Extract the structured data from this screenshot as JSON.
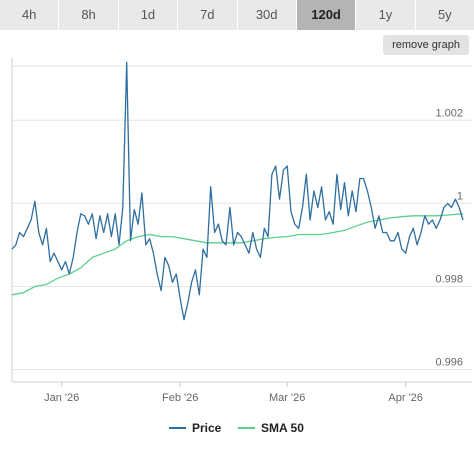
{
  "tabs": [
    {
      "label": "4h",
      "active": false
    },
    {
      "label": "8h",
      "active": false
    },
    {
      "label": "1d",
      "active": false
    },
    {
      "label": "7d",
      "active": false
    },
    {
      "label": "30d",
      "active": false
    },
    {
      "label": "120d",
      "active": true
    },
    {
      "label": "1y",
      "active": false
    },
    {
      "label": "5y",
      "active": false
    }
  ],
  "remove_graph_label": "remove graph",
  "colors": {
    "price": "#2f6f9f",
    "sma": "#5bd08b",
    "grid": "#e6e6e6",
    "axis_text": "#666666"
  },
  "chart_data": {
    "type": "line",
    "title": "",
    "xlabel": "",
    "ylabel": "",
    "ylim": [
      0.9957,
      1.0035
    ],
    "yticks": [
      0.996,
      0.998,
      1,
      1.002
    ],
    "ytick_labels": [
      "0.996",
      "0.998",
      "1",
      "1.002"
    ],
    "x_range": [
      "2025-12-19",
      "2026-04-16"
    ],
    "xticks": [
      {
        "date": "2026-01-01",
        "label": "Jan '26"
      },
      {
        "date": "2026-02-01",
        "label": "Feb '26"
      },
      {
        "date": "2026-03-01",
        "label": "Mar '26"
      },
      {
        "date": "2026-04-01",
        "label": "Apr '26"
      }
    ],
    "series": [
      {
        "name": "Price",
        "color": "#2f6f9f",
        "points": [
          [
            "2025-12-19",
            0.9989
          ],
          [
            "2025-12-20",
            0.999
          ],
          [
            "2025-12-21",
            0.9993
          ],
          [
            "2025-12-22",
            0.9992
          ],
          [
            "2025-12-23",
            0.9994
          ],
          [
            "2025-12-24",
            0.9996
          ],
          [
            "2025-12-25",
            1.00005
          ],
          [
            "2025-12-26",
            0.9993
          ],
          [
            "2025-12-27",
            0.999
          ],
          [
            "2025-12-28",
            0.9994
          ],
          [
            "2025-12-29",
            0.9986
          ],
          [
            "2025-12-30",
            0.9988
          ],
          [
            "2025-12-31",
            0.9986
          ],
          [
            "2026-01-01",
            0.9984
          ],
          [
            "2026-01-02",
            0.9986
          ],
          [
            "2026-01-03",
            0.9983
          ],
          [
            "2026-01-04",
            0.9987
          ],
          [
            "2026-01-05",
            0.9993
          ],
          [
            "2026-01-06",
            0.99975
          ],
          [
            "2026-01-07",
            0.9997
          ],
          [
            "2026-01-08",
            0.9995
          ],
          [
            "2026-01-09",
            0.99975
          ],
          [
            "2026-01-10",
            0.99915
          ],
          [
            "2026-01-11",
            0.9997
          ],
          [
            "2026-01-12",
            0.9993
          ],
          [
            "2026-01-13",
            0.99975
          ],
          [
            "2026-01-14",
            0.9992
          ],
          [
            "2026-01-15",
            0.99975
          ],
          [
            "2026-01-16",
            0.999
          ],
          [
            "2026-01-17",
            0.9999
          ],
          [
            "2026-01-18",
            1.0034
          ],
          [
            "2026-01-19",
            0.9991
          ],
          [
            "2026-01-20",
            0.99985
          ],
          [
            "2026-01-21",
            0.9995
          ],
          [
            "2026-01-22",
            1.00025
          ],
          [
            "2026-01-23",
            0.999
          ],
          [
            "2026-01-24",
            0.99915
          ],
          [
            "2026-01-25",
            0.9988
          ],
          [
            "2026-01-26",
            0.9983
          ],
          [
            "2026-01-27",
            0.9979
          ],
          [
            "2026-01-28",
            0.9987
          ],
          [
            "2026-01-29",
            0.9985
          ],
          [
            "2026-01-30",
            0.9981
          ],
          [
            "2026-01-31",
            0.9983
          ],
          [
            "2026-02-01",
            0.9977
          ],
          [
            "2026-02-02",
            0.9972
          ],
          [
            "2026-02-03",
            0.9976
          ],
          [
            "2026-02-04",
            0.9981
          ],
          [
            "2026-02-05",
            0.9984
          ],
          [
            "2026-02-06",
            0.9978
          ],
          [
            "2026-02-07",
            0.9989
          ],
          [
            "2026-02-08",
            0.9987
          ],
          [
            "2026-02-09",
            1.0004
          ],
          [
            "2026-02-10",
            0.9993
          ],
          [
            "2026-02-11",
            0.9995
          ],
          [
            "2026-02-12",
            0.9991
          ],
          [
            "2026-02-13",
            0.999
          ],
          [
            "2026-02-14",
            0.9999
          ],
          [
            "2026-02-15",
            0.999
          ],
          [
            "2026-02-16",
            0.9993
          ],
          [
            "2026-02-17",
            0.9992
          ],
          [
            "2026-02-18",
            0.999
          ],
          [
            "2026-02-19",
            0.9988
          ],
          [
            "2026-02-20",
            0.9993
          ],
          [
            "2026-02-21",
            0.9989
          ],
          [
            "2026-02-22",
            0.9987
          ],
          [
            "2026-02-23",
            0.9994
          ],
          [
            "2026-02-24",
            0.9992
          ],
          [
            "2026-02-25",
            1.0007
          ],
          [
            "2026-02-26",
            1.0009
          ],
          [
            "2026-02-27",
            1.0001
          ],
          [
            "2026-02-28",
            1.0008
          ],
          [
            "2026-03-01",
            1.0009
          ],
          [
            "2026-03-02",
            0.9998
          ],
          [
            "2026-03-03",
            0.9995
          ],
          [
            "2026-03-04",
            0.9994
          ],
          [
            "2026-03-05",
            0.9999
          ],
          [
            "2026-03-06",
            1.0007
          ],
          [
            "2026-03-07",
            0.9996
          ],
          [
            "2026-03-08",
            1.0003
          ],
          [
            "2026-03-09",
            0.9999
          ],
          [
            "2026-03-10",
            1.0004
          ],
          [
            "2026-03-11",
            0.9996
          ],
          [
            "2026-03-12",
            0.9998
          ],
          [
            "2026-03-13",
            0.9995
          ],
          [
            "2026-03-14",
            1.0007
          ],
          [
            "2026-03-15",
            0.99985
          ],
          [
            "2026-03-16",
            1.0005
          ],
          [
            "2026-03-17",
            0.9997
          ],
          [
            "2026-03-18",
            1.0003
          ],
          [
            "2026-03-19",
            0.9998
          ],
          [
            "2026-03-20",
            1.0006
          ],
          [
            "2026-03-21",
            1.0006
          ],
          [
            "2026-03-22",
            1.0003
          ],
          [
            "2026-03-23",
            0.9999
          ],
          [
            "2026-03-24",
            0.9994
          ],
          [
            "2026-03-25",
            0.9997
          ],
          [
            "2026-03-26",
            0.9993
          ],
          [
            "2026-03-27",
            0.9993
          ],
          [
            "2026-03-28",
            0.9991
          ],
          [
            "2026-03-29",
            0.9991
          ],
          [
            "2026-03-30",
            0.9993
          ],
          [
            "2026-03-31",
            0.9989
          ],
          [
            "2026-04-01",
            0.9988
          ],
          [
            "2026-04-02",
            0.9992
          ],
          [
            "2026-04-03",
            0.9994
          ],
          [
            "2026-04-04",
            0.999
          ],
          [
            "2026-04-05",
            0.9993
          ],
          [
            "2026-04-06",
            0.9997
          ],
          [
            "2026-04-07",
            0.9995
          ],
          [
            "2026-04-08",
            0.9996
          ],
          [
            "2026-04-09",
            0.9994
          ],
          [
            "2026-04-10",
            0.9996
          ],
          [
            "2026-04-11",
            0.9999
          ],
          [
            "2026-04-12",
            1.0
          ],
          [
            "2026-04-13",
            0.9999
          ],
          [
            "2026-04-14",
            1.0001
          ],
          [
            "2026-04-15",
            0.9999
          ],
          [
            "2026-04-16",
            0.9996
          ]
        ]
      },
      {
        "name": "SMA 50",
        "color": "#5bd08b",
        "points": [
          [
            "2025-12-19",
            0.9978
          ],
          [
            "2025-12-22",
            0.99785
          ],
          [
            "2025-12-25",
            0.998
          ],
          [
            "2025-12-28",
            0.99805
          ],
          [
            "2025-12-31",
            0.9982
          ],
          [
            "2026-01-03",
            0.9983
          ],
          [
            "2026-01-06",
            0.99845
          ],
          [
            "2026-01-09",
            0.9987
          ],
          [
            "2026-01-12",
            0.9988
          ],
          [
            "2026-01-15",
            0.9989
          ],
          [
            "2026-01-18",
            0.9991
          ],
          [
            "2026-01-21",
            0.9992
          ],
          [
            "2026-01-24",
            0.99925
          ],
          [
            "2026-01-27",
            0.9992
          ],
          [
            "2026-01-30",
            0.9992
          ],
          [
            "2026-02-02",
            0.99915
          ],
          [
            "2026-02-05",
            0.9991
          ],
          [
            "2026-02-08",
            0.99905
          ],
          [
            "2026-02-11",
            0.99905
          ],
          [
            "2026-02-14",
            0.99905
          ],
          [
            "2026-02-17",
            0.99905
          ],
          [
            "2026-02-20",
            0.9991
          ],
          [
            "2026-02-23",
            0.99915
          ],
          [
            "2026-02-26",
            0.99918
          ],
          [
            "2026-03-01",
            0.9992
          ],
          [
            "2026-03-04",
            0.99925
          ],
          [
            "2026-03-07",
            0.99925
          ],
          [
            "2026-03-10",
            0.99925
          ],
          [
            "2026-03-13",
            0.9993
          ],
          [
            "2026-03-16",
            0.99935
          ],
          [
            "2026-03-19",
            0.99945
          ],
          [
            "2026-03-22",
            0.99955
          ],
          [
            "2026-03-25",
            0.9996
          ],
          [
            "2026-03-28",
            0.99965
          ],
          [
            "2026-03-31",
            0.99968
          ],
          [
            "2026-04-03",
            0.9997
          ],
          [
            "2026-04-06",
            0.9997
          ],
          [
            "2026-04-09",
            0.9997
          ],
          [
            "2026-04-12",
            0.99972
          ],
          [
            "2026-04-16",
            0.99975
          ]
        ]
      }
    ],
    "legend": {
      "position": "bottom",
      "entries": [
        "Price",
        "SMA 50"
      ]
    },
    "grid": true
  }
}
